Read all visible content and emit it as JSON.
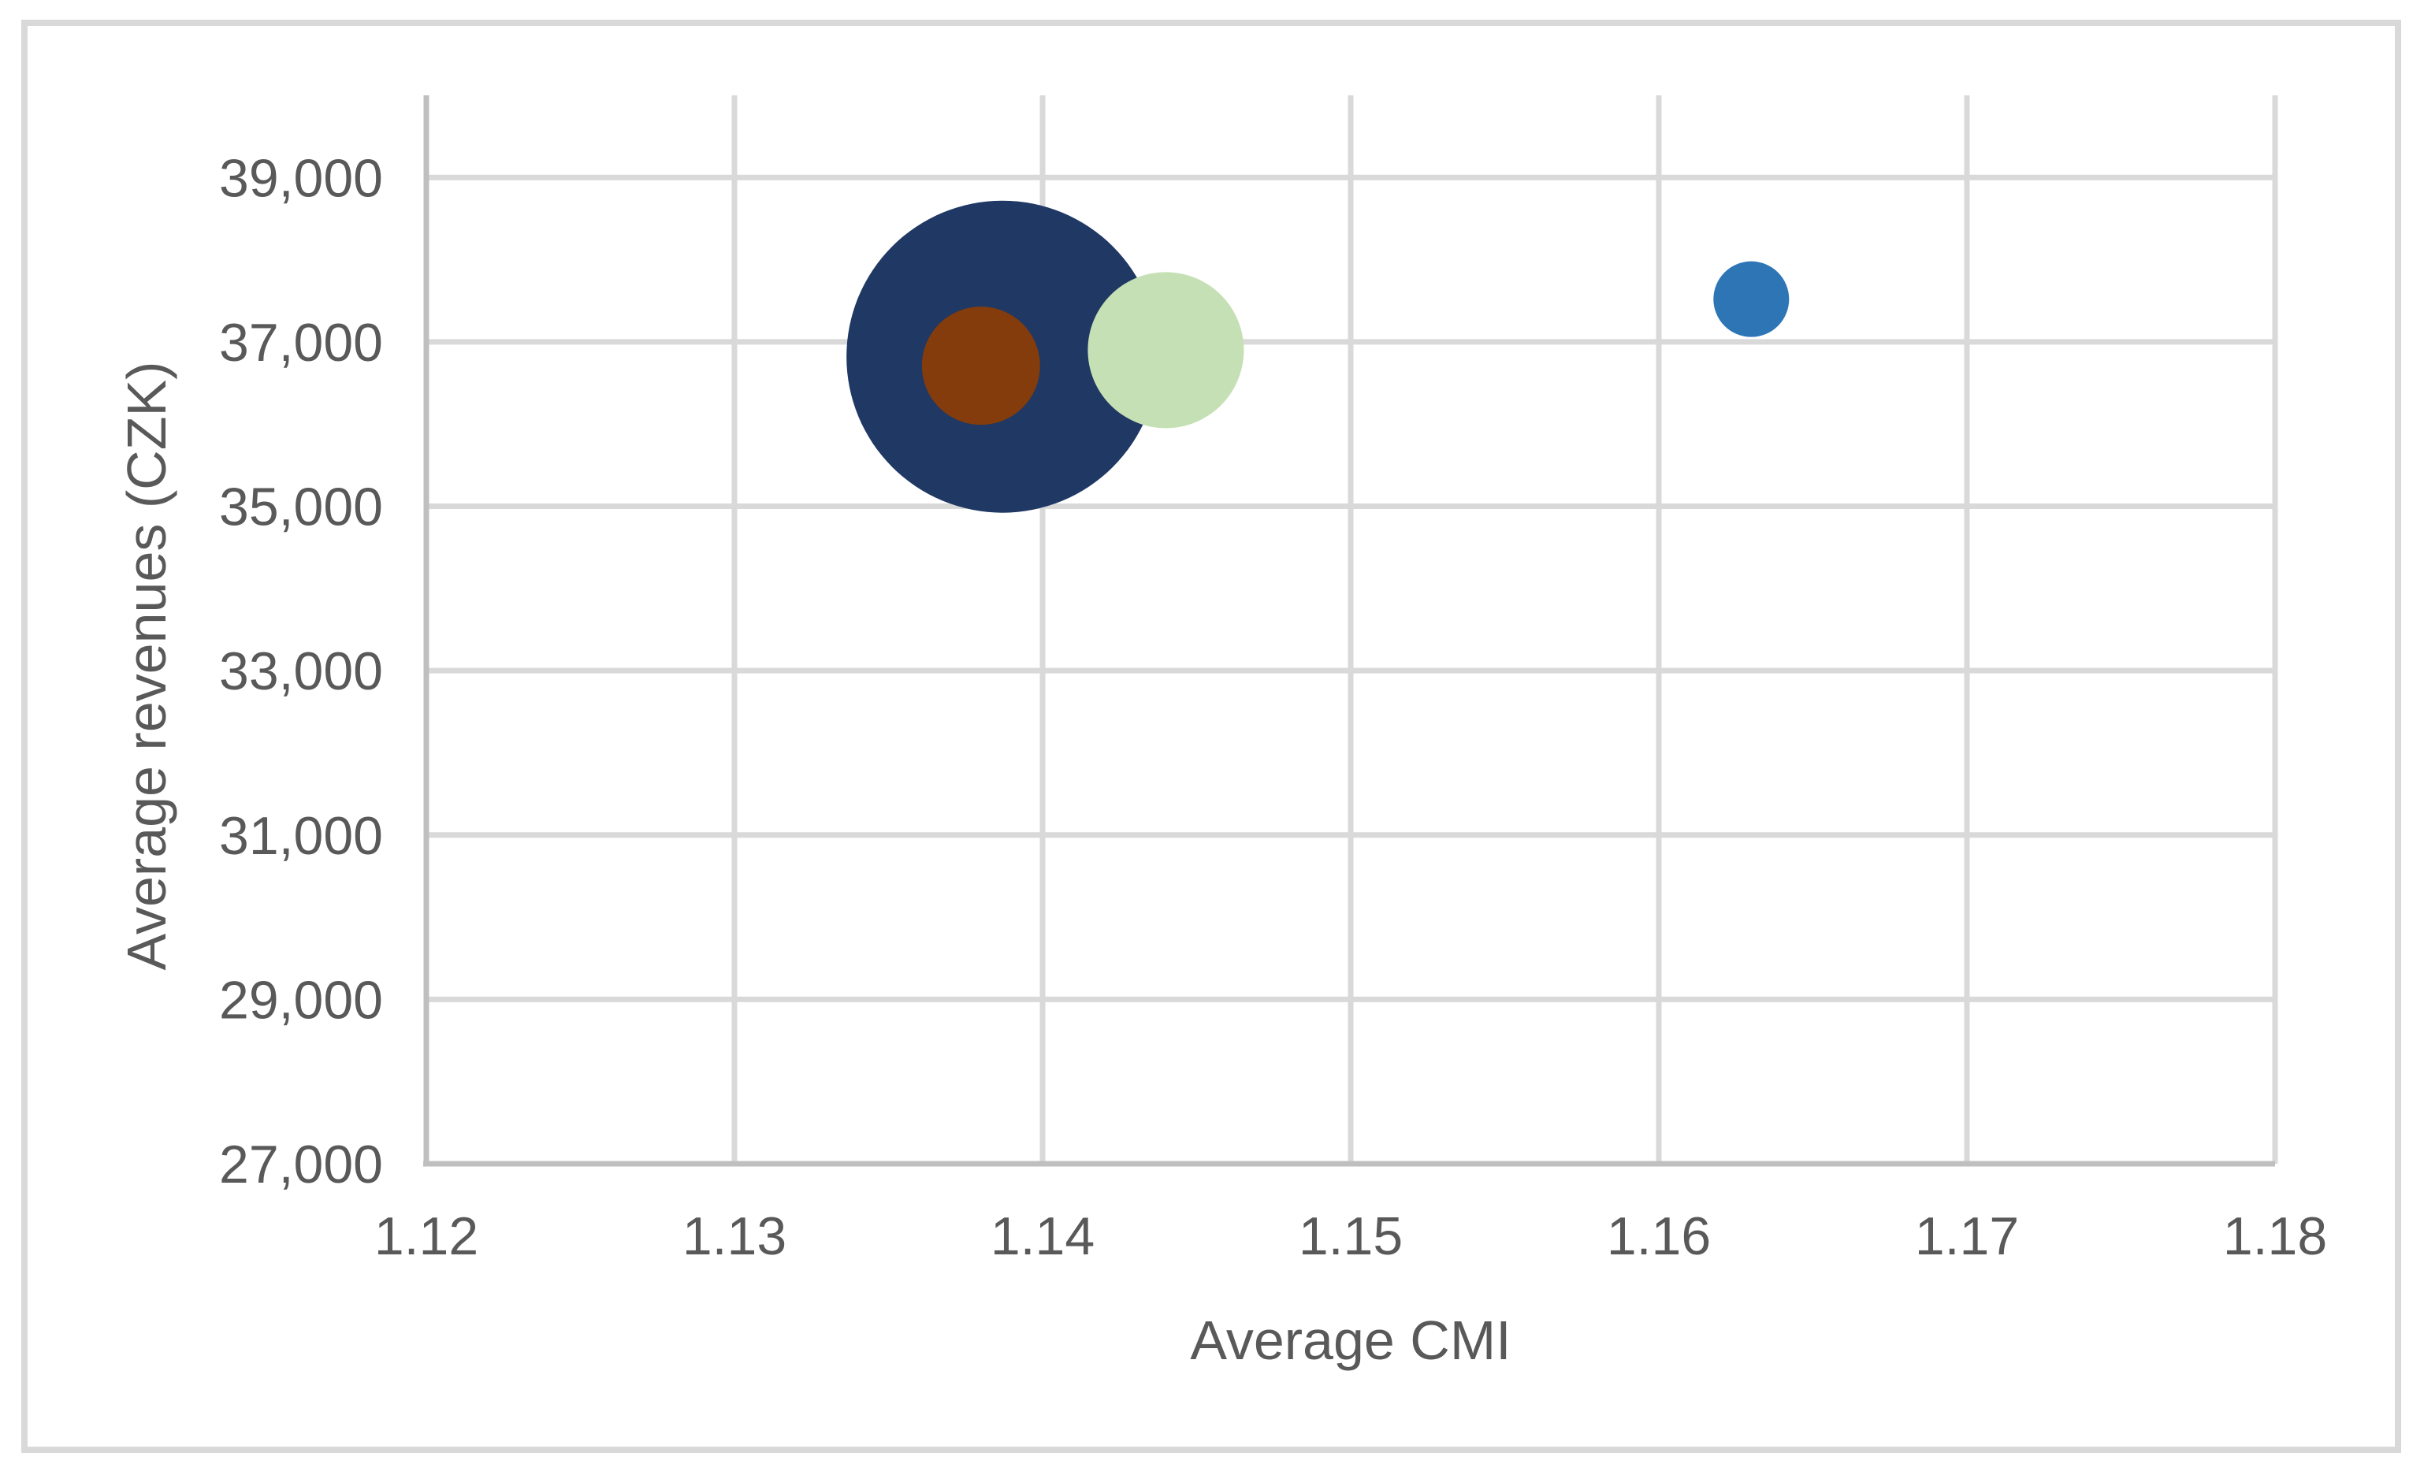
{
  "figure": {
    "background": "#ffffff",
    "border_color": "#d9d9d9"
  },
  "chart_data": {
    "type": "scatter",
    "subtype": "bubble",
    "title": "",
    "xlabel": "Average CMI",
    "ylabel": "Average revenues (CZK)",
    "xlim": [
      1.12,
      1.18
    ],
    "ylim": [
      27000,
      40000
    ],
    "grid": true,
    "legend": "none",
    "x_ticks": [
      {
        "v": 1.12,
        "label": "1.12"
      },
      {
        "v": 1.13,
        "label": "1.13"
      },
      {
        "v": 1.14,
        "label": "1.14"
      },
      {
        "v": 1.15,
        "label": "1.15"
      },
      {
        "v": 1.16,
        "label": "1.16"
      },
      {
        "v": 1.17,
        "label": "1.17"
      },
      {
        "v": 1.18,
        "label": "1.18"
      }
    ],
    "y_ticks": [
      {
        "v": 27000,
        "label": "27,000"
      },
      {
        "v": 29000,
        "label": "29,000"
      },
      {
        "v": 31000,
        "label": "31,000"
      },
      {
        "v": 33000,
        "label": "33,000"
      },
      {
        "v": 35000,
        "label": "35,000"
      },
      {
        "v": 37000,
        "label": "37,000"
      },
      {
        "v": 39000,
        "label": "39,000"
      }
    ],
    "series": [
      {
        "name": "bubble-navy",
        "color": "#1f3864",
        "x": 1.1387,
        "y": 36820,
        "radius_px": 198
      },
      {
        "name": "bubble-green",
        "color": "#c5e0b4",
        "x": 1.144,
        "y": 36900,
        "radius_px": 99
      },
      {
        "name": "bubble-brown",
        "color": "#843c0c",
        "x": 1.138,
        "y": 36710,
        "radius_px": 75
      },
      {
        "name": "bubble-blue",
        "color": "#2e75b6",
        "x": 1.163,
        "y": 37520,
        "radius_px": 48
      }
    ],
    "colors": {
      "gridline": "#d9d9d9",
      "axis_line": "#bfbfbf",
      "tick_text": "#595959",
      "title_text": "#595959"
    }
  }
}
